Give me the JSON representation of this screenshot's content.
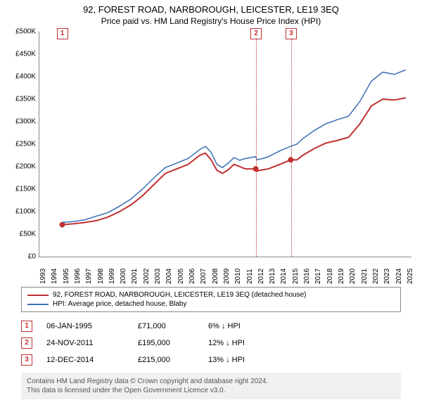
{
  "title": "92, FOREST ROAD, NARBOROUGH, LEICESTER, LE19 3EQ",
  "subtitle": "Price paid vs. HM Land Registry's House Price Index (HPI)",
  "chart": {
    "type": "line",
    "y_axis": {
      "ticks": [
        0,
        50,
        100,
        150,
        200,
        250,
        300,
        350,
        400,
        450,
        500
      ],
      "labels": [
        "£0",
        "£50K",
        "£100K",
        "£150K",
        "£200K",
        "£250K",
        "£300K",
        "£350K",
        "£400K",
        "£450K",
        "£500K"
      ],
      "min": 0,
      "max": 500
    },
    "x_axis": {
      "min": 1993,
      "max": 2025.5,
      "ticks": [
        1993,
        1994,
        1995,
        1996,
        1997,
        1998,
        1999,
        2000,
        2001,
        2002,
        2003,
        2004,
        2005,
        2006,
        2007,
        2008,
        2009,
        2010,
        2011,
        2012,
        2013,
        2014,
        2015,
        2016,
        2017,
        2018,
        2019,
        2020,
        2021,
        2022,
        2023,
        2024,
        2025
      ]
    },
    "background_color": "#ffffff",
    "series": [
      {
        "name": "red",
        "color": "#c03030",
        "width": 2,
        "label": "92, FOREST ROAD, NARBOROUGH, LEICESTER, LE19 3EQ (detached house)",
        "points": [
          [
            1995.0,
            71
          ],
          [
            1996,
            73
          ],
          [
            1997,
            76
          ],
          [
            1998,
            80
          ],
          [
            1999,
            88
          ],
          [
            2000,
            100
          ],
          [
            2001,
            115
          ],
          [
            2002,
            135
          ],
          [
            2003,
            160
          ],
          [
            2004,
            185
          ],
          [
            2005,
            195
          ],
          [
            2006,
            205
          ],
          [
            2007,
            225
          ],
          [
            2007.5,
            230
          ],
          [
            2008,
            215
          ],
          [
            2008.5,
            192
          ],
          [
            2009,
            185
          ],
          [
            2009.5,
            193
          ],
          [
            2010,
            205
          ],
          [
            2010.5,
            200
          ],
          [
            2011,
            195
          ],
          [
            2011.9,
            195
          ],
          [
            2012,
            190
          ],
          [
            2012.5,
            193
          ],
          [
            2013,
            195
          ],
          [
            2014,
            205
          ],
          [
            2014.95,
            215
          ],
          [
            2015.5,
            215
          ],
          [
            2016,
            225
          ],
          [
            2017,
            240
          ],
          [
            2018,
            252
          ],
          [
            2019,
            258
          ],
          [
            2020,
            265
          ],
          [
            2021,
            295
          ],
          [
            2022,
            335
          ],
          [
            2023,
            350
          ],
          [
            2024,
            348
          ],
          [
            2025,
            353
          ]
        ],
        "dots": [
          [
            1995.0,
            71
          ],
          [
            2011.9,
            195
          ],
          [
            2014.95,
            215
          ]
        ]
      },
      {
        "name": "blue",
        "color": "#3b6fb6",
        "width": 1.5,
        "label": "HPI: Average price, detached house, Blaby",
        "points": [
          [
            1995.0,
            76
          ],
          [
            1996,
            78
          ],
          [
            1997,
            82
          ],
          [
            1998,
            90
          ],
          [
            1999,
            98
          ],
          [
            2000,
            112
          ],
          [
            2001,
            128
          ],
          [
            2002,
            150
          ],
          [
            2003,
            175
          ],
          [
            2004,
            198
          ],
          [
            2005,
            208
          ],
          [
            2006,
            218
          ],
          [
            2007,
            238
          ],
          [
            2007.5,
            245
          ],
          [
            2008,
            232
          ],
          [
            2008.5,
            205
          ],
          [
            2009,
            198
          ],
          [
            2009.5,
            208
          ],
          [
            2010,
            220
          ],
          [
            2010.5,
            214
          ],
          [
            2011,
            218
          ],
          [
            2011.9,
            222
          ],
          [
            2012,
            215
          ],
          [
            2012.5,
            218
          ],
          [
            2013,
            222
          ],
          [
            2014,
            235
          ],
          [
            2014.95,
            245
          ],
          [
            2015.5,
            250
          ],
          [
            2016,
            262
          ],
          [
            2017,
            280
          ],
          [
            2018,
            295
          ],
          [
            2019,
            304
          ],
          [
            2020,
            312
          ],
          [
            2021,
            345
          ],
          [
            2022,
            390
          ],
          [
            2023,
            410
          ],
          [
            2024,
            405
          ],
          [
            2025,
            415
          ]
        ],
        "dots": []
      }
    ],
    "markers": [
      {
        "id": "1",
        "x": 1995.0,
        "line": false
      },
      {
        "id": "2",
        "x": 2011.9,
        "line": true
      },
      {
        "id": "3",
        "x": 2014.95,
        "line": true
      }
    ]
  },
  "legend": [
    {
      "color": "#c03030",
      "label": "92, FOREST ROAD, NARBOROUGH, LEICESTER, LE19 3EQ (detached house)"
    },
    {
      "color": "#3b6fb6",
      "label": "HPI: Average price, detached house, Blaby"
    }
  ],
  "transactions": [
    {
      "id": "1",
      "date": "06-JAN-1995",
      "price": "£71,000",
      "delta": "6% ↓ HPI"
    },
    {
      "id": "2",
      "date": "24-NOV-2011",
      "price": "£195,000",
      "delta": "12% ↓ HPI"
    },
    {
      "id": "3",
      "date": "12-DEC-2014",
      "price": "£215,000",
      "delta": "13% ↓ HPI"
    }
  ],
  "footer": {
    "line1": "Contains HM Land Registry data © Crown copyright and database right 2024.",
    "line2": "This data is licensed under the Open Government Licence v3.0."
  }
}
